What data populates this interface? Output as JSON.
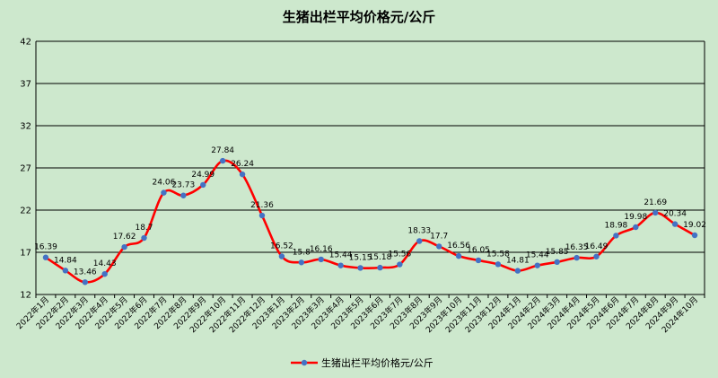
{
  "chart_data": {
    "type": "line",
    "title": "生猪出栏平均价格元/公斤",
    "xlabel": "",
    "ylabel": "",
    "ylim": [
      12,
      42
    ],
    "yticks": [
      12,
      17,
      22,
      27,
      32,
      37,
      42
    ],
    "legend_position": "bottom",
    "grid": true,
    "colors": {
      "line": "#ff0000",
      "marker": "#4472c4",
      "grid": "#000000",
      "background": "#cde8cd"
    },
    "categories": [
      "2022年1月",
      "2022年2月",
      "2022年3月",
      "2022年4月",
      "2022年5月",
      "2022年6月",
      "2022年7月",
      "2022年8月",
      "2022年9月",
      "2022年10月",
      "2022年11月",
      "2022年12月",
      "2023年1月",
      "2023年2月",
      "2023年3月",
      "2023年4月",
      "2023年5月",
      "2023年6月",
      "2023年7月",
      "2023年8月",
      "2023年9月",
      "2023年10月",
      "2023年11月",
      "2023年12月",
      "2024年1月",
      "2024年2月",
      "2024年3月",
      "2024年4月",
      "2024年5月",
      "2024年6月",
      "2024年7月",
      "2024年8月",
      "2024年9月",
      "2024年10月"
    ],
    "series": [
      {
        "name": "生猪出栏平均价格元/公斤",
        "values": [
          16.39,
          14.84,
          13.46,
          14.43,
          17.62,
          18.7,
          24.06,
          23.73,
          24.99,
          27.84,
          26.24,
          21.36,
          16.52,
          15.8,
          16.16,
          15.44,
          15.15,
          15.18,
          15.56,
          18.33,
          17.7,
          16.56,
          16.05,
          15.58,
          14.81,
          15.44,
          15.85,
          16.35,
          16.49,
          18.98,
          19.98,
          21.69,
          20.34,
          19.02
        ],
        "labels": [
          "16.39",
          "14.84",
          "13.46",
          "14.43",
          "17.62",
          "18.7",
          "24.06",
          "23.73",
          "24.99",
          "27.84",
          "26.24",
          "21.36",
          "16.52",
          "15.8",
          "16.16",
          "15.44",
          "15.15",
          "15.18",
          "15.56",
          "18.33",
          "17.7",
          "16.56",
          "16.05",
          "15.58",
          "14.81",
          "15.44",
          "15.85",
          "16.35",
          "16.49",
          "18.98",
          "19.98",
          "21.69",
          "20.34",
          "19.02"
        ]
      }
    ]
  }
}
